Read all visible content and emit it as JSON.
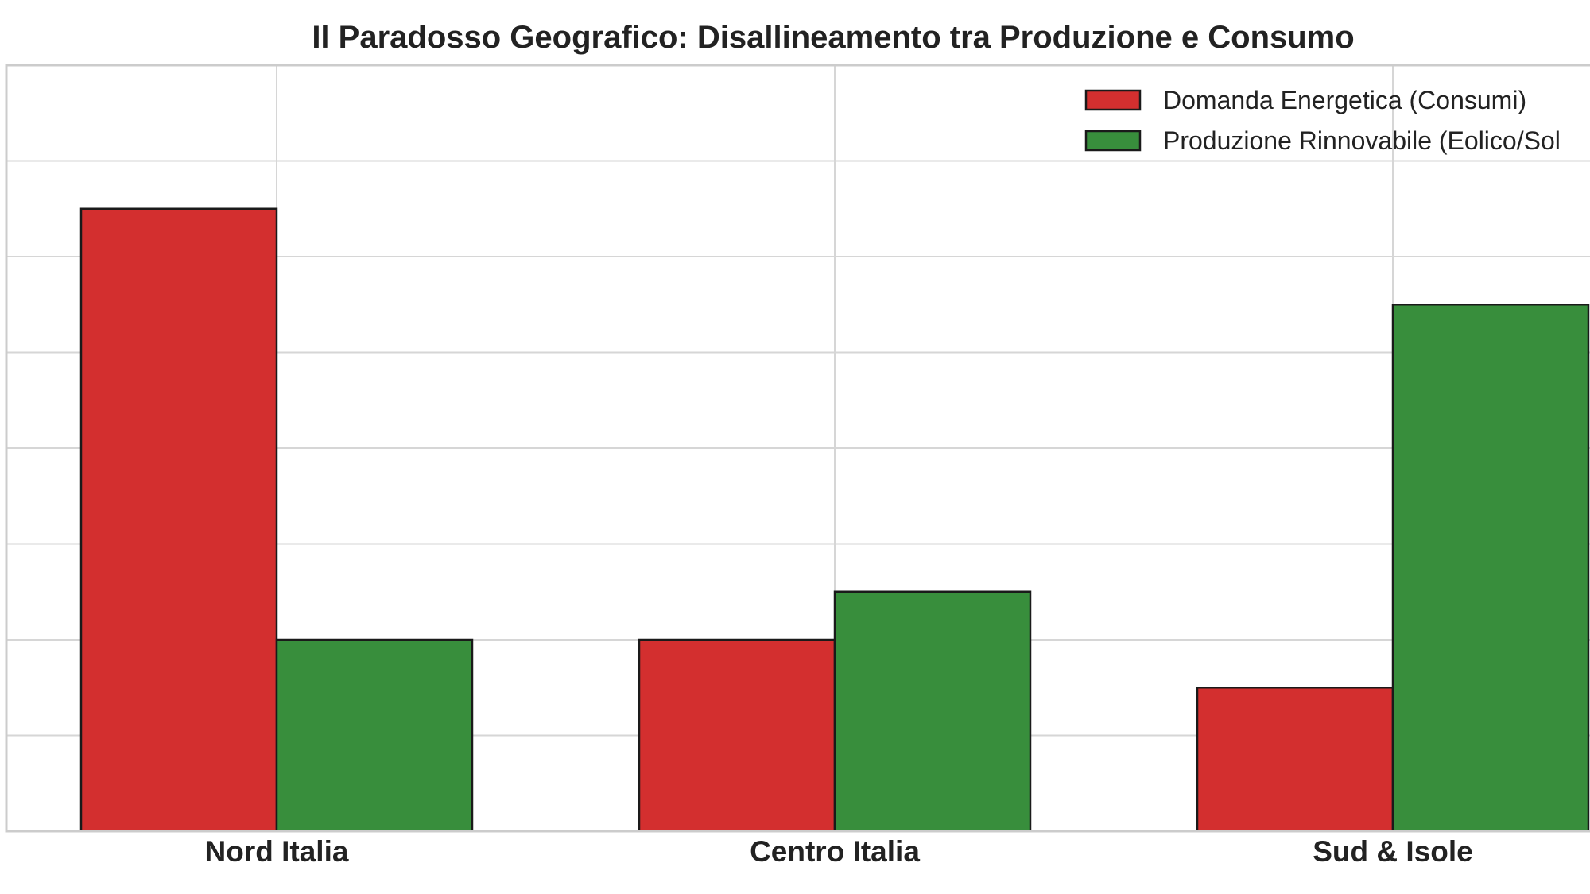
{
  "chart_data": {
    "type": "bar",
    "title": "Il Paradosso Geografico: Disallineamento tra Produzione e Consumo",
    "xlabel": "",
    "ylabel": "",
    "categories": [
      "Nord Italia",
      "Centro Italia",
      "Sud & Isole"
    ],
    "series": [
      {
        "name": "Domanda Energetica (Consumi)",
        "color": "#d32f2f",
        "values": [
          65,
          20,
          15
        ]
      },
      {
        "name": "Produzione Rinnovabile (Eolico/Sol",
        "color": "#388e3c",
        "values": [
          20,
          25,
          55
        ]
      }
    ],
    "ylim": [
      0,
      80
    ],
    "grid": true,
    "legend_position": "top-right"
  }
}
